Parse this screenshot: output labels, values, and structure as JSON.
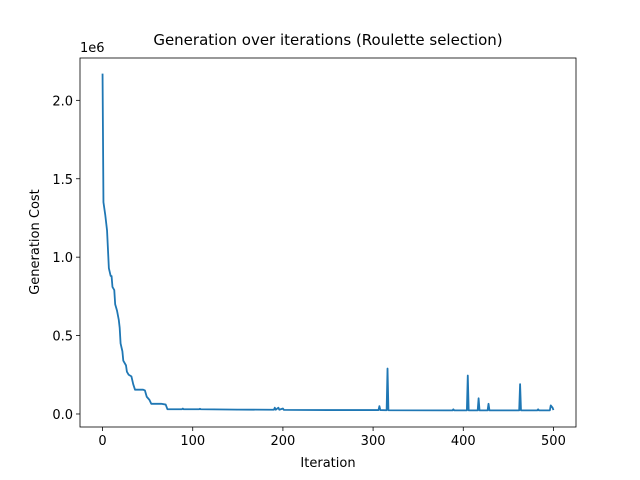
{
  "chart_data": {
    "type": "line",
    "title": "Generation over iterations (Roulette selection)",
    "xlabel": "Iteration",
    "ylabel": "Generation Cost",
    "y_offset_label": "1e6",
    "x": [
      0,
      1,
      3,
      5,
      7,
      9,
      10,
      11,
      13,
      14,
      16,
      18,
      19,
      20,
      22,
      23,
      26,
      27,
      29,
      32,
      34,
      36,
      45,
      47,
      49,
      52,
      54,
      65,
      70,
      72,
      88,
      89,
      90,
      107,
      108,
      109,
      150,
      190,
      191,
      192,
      195,
      196,
      200,
      201,
      250,
      306,
      307,
      308,
      315,
      316,
      317,
      380,
      388,
      389,
      390,
      404,
      405,
      406,
      416,
      417,
      418,
      427,
      428,
      429,
      462,
      463,
      464,
      482,
      483,
      484,
      496,
      497,
      499,
      500
    ],
    "series": [
      {
        "name": "Generation Cost",
        "color": "#1f77b4",
        "values": [
          2.17,
          1.35,
          1.27,
          1.17,
          0.93,
          0.88,
          0.88,
          0.81,
          0.79,
          0.7,
          0.66,
          0.6,
          0.55,
          0.45,
          0.4,
          0.34,
          0.31,
          0.27,
          0.25,
          0.24,
          0.19,
          0.155,
          0.155,
          0.15,
          0.11,
          0.09,
          0.065,
          0.065,
          0.06,
          0.03,
          0.03,
          0.035,
          0.03,
          0.03,
          0.033,
          0.03,
          0.028,
          0.027,
          0.04,
          0.027,
          0.04,
          0.027,
          0.035,
          0.026,
          0.025,
          0.025,
          0.05,
          0.025,
          0.024,
          0.29,
          0.024,
          0.023,
          0.023,
          0.03,
          0.023,
          0.023,
          0.245,
          0.023,
          0.023,
          0.1,
          0.023,
          0.023,
          0.065,
          0.023,
          0.023,
          0.19,
          0.023,
          0.023,
          0.03,
          0.023,
          0.023,
          0.055,
          0.04,
          0.025
        ]
      }
    ],
    "xlim": [
      -25,
      525
    ],
    "xticks": [
      0,
      100,
      200,
      300,
      400,
      500
    ],
    "ylim": [
      -0.083,
      2.27
    ],
    "yticks": [
      {
        "value": 0,
        "label": "0.0"
      },
      0.5,
      {
        "value": 1,
        "label": "1.0"
      },
      1.5,
      {
        "value": 2,
        "label": "2.0"
      }
    ]
  }
}
